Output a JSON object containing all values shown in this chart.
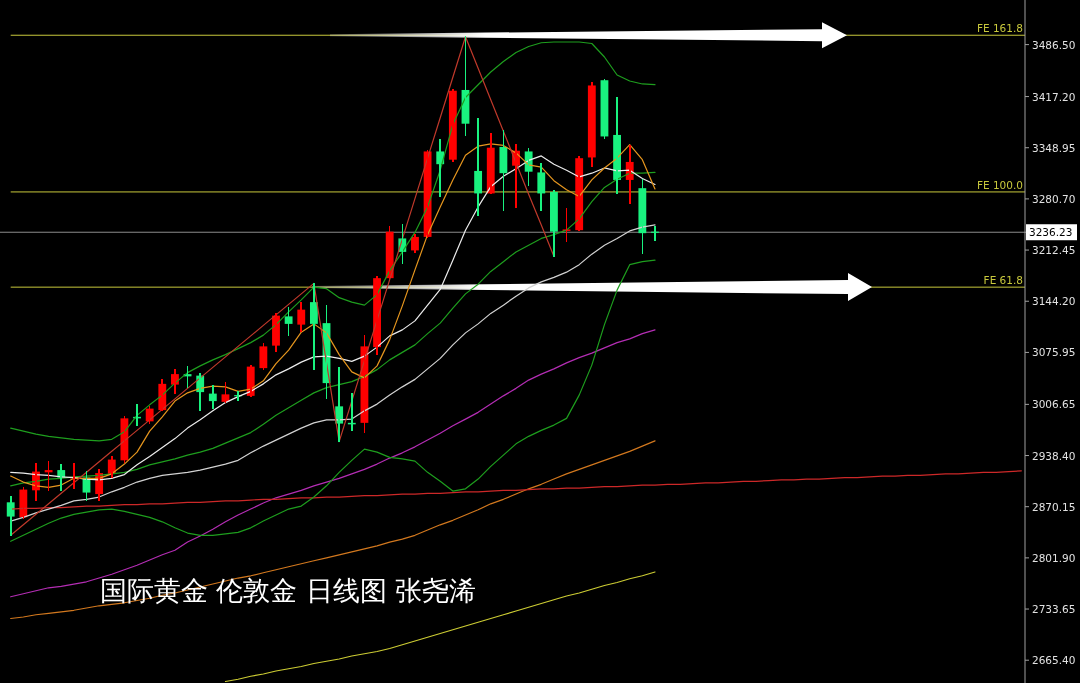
{
  "chart_data": {
    "type": "candlestick",
    "title": "国际黄金 伦敦金 日线图 张尧浠",
    "categories": [
      null,
      null,
      null,
      null,
      null,
      null,
      null,
      null,
      null,
      null,
      null,
      null,
      null,
      null,
      null,
      null,
      null,
      null,
      null,
      null,
      null,
      null,
      null,
      null,
      null,
      null,
      null,
      null,
      null,
      null,
      null,
      null,
      null,
      null,
      null,
      null,
      null,
      null,
      null,
      null,
      null,
      null,
      null,
      null,
      null,
      null,
      null,
      null,
      null,
      null,
      null,
      null,
      null,
      null,
      null,
      null,
      null,
      null,
      null,
      null,
      null,
      null,
      null,
      null,
      null,
      null,
      null,
      null,
      null,
      null,
      null,
      null,
      null,
      null,
      null,
      null,
      null,
      null,
      null,
      null,
      null
    ],
    "ohlc": [
      [
        2876,
        2883,
        2832,
        2857
      ],
      [
        2856,
        2895,
        2855,
        2893
      ],
      [
        2892,
        2928,
        2879,
        2917
      ],
      [
        2916,
        2930,
        2892,
        2919
      ],
      [
        2919,
        2926,
        2892,
        2909
      ],
      [
        2908,
        2927,
        2895,
        2910
      ],
      [
        2909,
        2917,
        2879,
        2889
      ],
      [
        2887,
        2919,
        2879,
        2915
      ],
      [
        2914,
        2937,
        2910,
        2933
      ],
      [
        2932,
        2990,
        2930,
        2988
      ],
      [
        2990,
        3006,
        2979,
        2988
      ],
      [
        2984,
        3004,
        2981,
        3001
      ],
      [
        2999,
        3039,
        2999,
        3034
      ],
      [
        3033,
        3053,
        3021,
        3047
      ],
      [
        3047,
        3057,
        3030,
        3044
      ],
      [
        3045,
        3047,
        2999,
        3023
      ],
      [
        3021,
        3032,
        3001,
        3011
      ],
      [
        3010,
        3035,
        3010,
        3020
      ],
      [
        3019,
        3024,
        3012,
        3018
      ],
      [
        3018,
        3058,
        3018,
        3057
      ],
      [
        3055,
        3087,
        3053,
        3084
      ],
      [
        3085,
        3128,
        3077,
        3125
      ],
      [
        3124,
        3136,
        3099,
        3114
      ],
      [
        3113,
        3142,
        3104,
        3133
      ],
      [
        3143,
        3167,
        3053,
        3114
      ],
      [
        3115,
        3138,
        3015,
        3035
      ],
      [
        3004,
        3055,
        2957,
        2981
      ],
      [
        2982,
        3021,
        2972,
        2980
      ],
      [
        2982,
        3098,
        2970,
        3084
      ],
      [
        3083,
        3177,
        3073,
        3175
      ],
      [
        3175,
        3244,
        3175,
        3237
      ],
      [
        3228,
        3246,
        3195,
        3210
      ],
      [
        3212,
        3233,
        3210,
        3230
      ],
      [
        3230,
        3345,
        3229,
        3344
      ],
      [
        3344,
        3359,
        3284,
        3327
      ],
      [
        3333,
        3426,
        3331,
        3425
      ],
      [
        3426,
        3497,
        3366,
        3381
      ],
      [
        3318,
        3387,
        3259,
        3288
      ],
      [
        3288,
        3368,
        3288,
        3349
      ],
      [
        3350,
        3371,
        3266,
        3315
      ],
      [
        3325,
        3353,
        3270,
        3345
      ],
      [
        3344,
        3348,
        3299,
        3317
      ],
      [
        3316,
        3328,
        3266,
        3288
      ],
      [
        3290,
        3291,
        3204,
        3237
      ],
      [
        3238,
        3268,
        3224,
        3240
      ],
      [
        3239,
        3337,
        3239,
        3335
      ],
      [
        3336,
        3435,
        3324,
        3432
      ],
      [
        3439,
        3440,
        3362,
        3364
      ],
      [
        3366,
        3415,
        3288,
        3306
      ],
      [
        3306,
        3351,
        3275,
        3330
      ],
      [
        3295,
        3306,
        3208,
        3235
      ],
      [
        3237,
        3243,
        3226,
        3236.23
      ],
      null,
      null,
      null,
      null,
      null,
      null,
      null,
      null,
      null,
      null,
      null,
      null,
      null,
      null,
      null,
      null,
      null,
      null,
      null,
      null,
      null,
      null,
      null,
      null,
      null,
      null,
      null,
      null,
      null
    ],
    "colors": [
      "#19f27f",
      "#ff0000",
      "#ff0000",
      "#ff0000",
      "#19f27f",
      "#ff0000",
      "#19f27f",
      "#ff0000",
      "#ff0000",
      "#ff0000",
      "#19f27f",
      "#ff0000",
      "#ff0000",
      "#ff0000",
      "#19f27f",
      "#19f27f",
      "#19f27f",
      "#ff0000",
      "#19f27f",
      "#ff0000",
      "#ff0000",
      "#ff0000",
      "#19f27f",
      "#ff0000",
      "#19f27f",
      "#19f27f",
      "#19f27f",
      "#19f27f",
      "#ff0000",
      "#ff0000",
      "#ff0000",
      "#19f27f",
      "#ff0000",
      "#ff0000",
      "#19f27f",
      "#ff0000",
      "#19f27f",
      "#19f27f",
      "#ff0000",
      "#19f27f",
      "#ff0000",
      "#19f27f",
      "#19f27f",
      "#19f27f",
      "#ff0000",
      "#ff0000",
      "#ff0000",
      "#19f27f",
      "#19f27f",
      "#ff0000",
      "#19f27f",
      "#19f27f",
      null,
      null,
      null,
      null,
      null,
      null,
      null,
      null,
      null,
      null,
      null,
      null,
      null,
      null,
      null,
      null,
      null,
      null,
      null,
      null,
      null,
      null,
      null,
      null,
      null,
      null,
      null,
      null,
      null
    ],
    "series": [
      {
        "type": "line",
        "color": "#cccc33",
        "values": [
          null,
          null,
          null,
          null,
          null,
          null,
          null,
          null,
          null,
          null,
          null,
          null,
          null,
          null,
          null,
          null,
          null,
          2637,
          2640,
          2644,
          2647,
          2651,
          2654,
          2657,
          2661,
          2664,
          2667,
          2671,
          2674,
          2677,
          2681,
          2686,
          2691,
          2696,
          2701,
          2706,
          2711,
          2716,
          2721,
          2726,
          2731,
          2736,
          2741,
          2746,
          2751,
          2755,
          2760,
          2765,
          2769,
          2774,
          2778,
          2783,
          null,
          null,
          null,
          null,
          null,
          null,
          null,
          null,
          null,
          null,
          null,
          null,
          null,
          null,
          null,
          null,
          null,
          null,
          null,
          null,
          null,
          null,
          null,
          null,
          null,
          null,
          null,
          null,
          null
        ]
      },
      {
        "type": "line",
        "color": "#d2781e",
        "values": [
          2721,
          2723,
          2726,
          2728,
          2730,
          2732,
          2735,
          2738,
          2740,
          2742,
          2745,
          2748,
          2752,
          2755,
          2759,
          2763,
          2767,
          2771,
          2775,
          2778,
          2782,
          2786,
          2790,
          2794,
          2798,
          2802,
          2806,
          2810,
          2814,
          2818,
          2823,
          2827,
          2832,
          2839,
          2846,
          2852,
          2859,
          2866,
          2874,
          2880,
          2887,
          2894,
          2900,
          2907,
          2914,
          2920,
          2926,
          2932,
          2938,
          2944,
          2951,
          2958,
          null,
          null,
          null,
          null,
          null,
          null,
          null,
          null,
          null,
          null,
          null,
          null,
          null,
          null,
          null,
          null,
          null,
          null,
          null,
          null,
          null,
          null,
          null,
          null,
          null,
          null,
          null,
          null,
          null
        ]
      },
      {
        "type": "line",
        "color": "#b42db4",
        "values": [
          2750,
          2754,
          2758,
          2762,
          2764,
          2767,
          2770,
          2775,
          2780,
          2786,
          2792,
          2799,
          2806,
          2812,
          2823,
          2831,
          2840,
          2850,
          2859,
          2867,
          2875,
          2882,
          2887,
          2892,
          2898,
          2903,
          2908,
          2914,
          2920,
          2927,
          2935,
          2942,
          2950,
          2959,
          2968,
          2978,
          2987,
          2996,
          3007,
          3018,
          3028,
          3039,
          3047,
          3054,
          3062,
          3069,
          3075,
          3082,
          3089,
          3094,
          3101,
          3106,
          null,
          null,
          null,
          null,
          null,
          null,
          null,
          null,
          null,
          null,
          null,
          null,
          null,
          null,
          null,
          null,
          null,
          null,
          null,
          null,
          null,
          null,
          null,
          null,
          null,
          null,
          null,
          null,
          null
        ]
      },
      {
        "type": "line",
        "color": "#cc2828",
        "values": [
          2867,
          2868,
          2868,
          2869,
          2869,
          2870,
          2871,
          2871,
          2872,
          2873,
          2873,
          2874,
          2874,
          2875,
          2876,
          2876,
          2877,
          2878,
          2878,
          2879,
          2880,
          2880,
          2881,
          2882,
          2882,
          2883,
          2883,
          2884,
          2885,
          2885,
          2886,
          2887,
          2887,
          2888,
          2888,
          2889,
          2890,
          2890,
          2891,
          2892,
          2892,
          2893,
          2894,
          2894,
          2895,
          2895,
          2896,
          2897,
          2897,
          2898,
          2899,
          2899,
          2900,
          2900,
          2901,
          2902,
          2902,
          2903,
          2904,
          2904,
          2905,
          2906,
          2906,
          2907,
          2907,
          2908,
          2909,
          2909,
          2910,
          2911,
          2911,
          2912,
          2912,
          2913,
          2914,
          2914,
          2915,
          2916,
          2916,
          2917,
          2918
        ]
      },
      {
        "type": "line",
        "color": "#1e9e1e",
        "values": [
          2975,
          2971,
          2967,
          2964,
          2962,
          2960,
          2959,
          2958,
          2960,
          2970,
          2992,
          3006,
          3019,
          3035,
          3049,
          3058,
          3066,
          3073,
          3081,
          3089,
          3099,
          3113,
          3130,
          3146,
          3163,
          3161,
          3149,
          3143,
          3139,
          3153,
          3185,
          3210,
          3236,
          3270,
          3319,
          3380,
          3416,
          3433,
          3450,
          3464,
          3476,
          3484,
          3489,
          3490,
          3490,
          3490,
          3488,
          3470,
          3446,
          3438,
          3434,
          3433,
          null,
          null,
          null,
          null,
          null,
          null,
          null,
          null,
          null,
          null,
          null,
          null,
          null,
          null,
          null,
          null,
          null,
          null,
          null,
          null,
          null,
          null,
          null,
          null,
          null,
          null,
          null,
          null,
          null
        ]
      },
      {
        "type": "line",
        "color": "#1e9e1e",
        "values": [
          2824,
          2832,
          2840,
          2848,
          2855,
          2860,
          2863,
          2866,
          2867,
          2864,
          2860,
          2856,
          2850,
          2842,
          2835,
          2832,
          2832,
          2834,
          2836,
          2842,
          2851,
          2859,
          2867,
          2871,
          2883,
          2898,
          2916,
          2932,
          2947,
          2943,
          2936,
          2934,
          2931,
          2916,
          2904,
          2891,
          2894,
          2907,
          2924,
          2939,
          2954,
          2964,
          2972,
          2979,
          2988,
          3019,
          3059,
          3113,
          3159,
          3193,
          3197,
          3199,
          null,
          null,
          null,
          null,
          null,
          null,
          null,
          null,
          null,
          null,
          null,
          null,
          null,
          null,
          null,
          null,
          null,
          null,
          null,
          null,
          null,
          null,
          null,
          null,
          null,
          null,
          null,
          null,
          null
        ]
      },
      {
        "type": "line",
        "color": "#1e9e1e",
        "values": [
          2898,
          2902,
          2904,
          2907,
          2908,
          2910,
          2911,
          2912,
          2914,
          2916,
          2920,
          2926,
          2930,
          2934,
          2939,
          2943,
          2948,
          2955,
          2962,
          2969,
          2980,
          2992,
          3002,
          3012,
          3022,
          3029,
          3033,
          3037,
          3044,
          3053,
          3066,
          3076,
          3086,
          3101,
          3115,
          3135,
          3154,
          3167,
          3184,
          3197,
          3210,
          3219,
          3228,
          3233,
          3239,
          3254,
          3277,
          3296,
          3307,
          3315,
          3315,
          3316,
          null,
          null,
          null,
          null,
          null,
          null,
          null,
          null,
          null,
          null,
          null,
          null,
          null,
          null,
          null,
          null,
          null,
          null,
          null,
          null,
          null,
          null,
          null,
          null,
          null,
          null,
          null,
          null,
          null
        ]
      },
      {
        "type": "line",
        "color": "#d2d2d2",
        "values": [
          2851,
          2856,
          2862,
          2867,
          2872,
          2878,
          2880,
          2883,
          2890,
          2896,
          2903,
          2908,
          2912,
          2914,
          2916,
          2919,
          2923,
          2927,
          2932,
          2942,
          2951,
          2959,
          2967,
          2975,
          2982,
          2986,
          2986,
          2987,
          2998,
          3007,
          3019,
          3030,
          3040,
          3054,
          3068,
          3086,
          3102,
          3114,
          3128,
          3139,
          3151,
          3162,
          3170,
          3176,
          3183,
          3193,
          3207,
          3219,
          3228,
          3238,
          3243,
          3246,
          null,
          null,
          null,
          null,
          null,
          null,
          null,
          null,
          null,
          null,
          null,
          null,
          null,
          null,
          null,
          null,
          null,
          null,
          null,
          null,
          null,
          null,
          null,
          null,
          null,
          null,
          null,
          null,
          null
        ]
      },
      {
        "type": "line",
        "color": "#ececec",
        "values": [
          2916,
          2915,
          2913,
          2912,
          2910,
          2909,
          2907,
          2906,
          2908,
          2913,
          2926,
          2937,
          2949,
          2961,
          2975,
          2986,
          2998,
          3009,
          3017,
          3024,
          3034,
          3046,
          3054,
          3063,
          3070,
          3071,
          3068,
          3064,
          3071,
          3083,
          3098,
          3106,
          3118,
          3139,
          3160,
          3199,
          3239,
          3270,
          3297,
          3311,
          3321,
          3332,
          3338,
          3327,
          3319,
          3310,
          3315,
          3322,
          3318,
          3319,
          3308,
          3300,
          null,
          null,
          null,
          null,
          null,
          null,
          null,
          null,
          null,
          null,
          null,
          null,
          null,
          null,
          null,
          null,
          null,
          null,
          null,
          null,
          null,
          null,
          null,
          null,
          null,
          null,
          null,
          null,
          null
        ]
      },
      {
        "type": "line",
        "color": "#e6961e",
        "values": [
          2911,
          2903,
          2898,
          2896,
          2899,
          2908,
          2908,
          2908,
          2914,
          2927,
          2943,
          2971,
          2990,
          3011,
          3022,
          3028,
          3031,
          3030,
          3024,
          3027,
          3038,
          3061,
          3079,
          3103,
          3114,
          3102,
          3073,
          3050,
          3042,
          3058,
          3093,
          3138,
          3186,
          3233,
          3270,
          3306,
          3339,
          3351,
          3354,
          3352,
          3342,
          3326,
          3323,
          3305,
          3293,
          3284,
          3306,
          3322,
          3335,
          3353,
          3333,
          3294,
          null,
          null,
          null,
          null,
          null,
          null,
          null,
          null,
          null,
          null,
          null,
          null,
          null,
          null,
          null,
          null,
          null,
          null,
          null,
          null,
          null,
          null,
          null,
          null,
          null,
          null,
          null,
          null,
          null
        ]
      },
      {
        "type": "line",
        "color": "#c0392b",
        "values": [
          2832,
          2846,
          2860,
          2874,
          2888,
          2902,
          2916,
          2930,
          2944,
          2958,
          2972,
          2986,
          3000,
          3014,
          3028,
          3042,
          3056,
          3070,
          3084,
          3098,
          3112,
          3126,
          3140,
          3154,
          3168,
          3062,
          2957,
          3011,
          3065,
          3119,
          3173,
          3227,
          3281,
          3335,
          3389,
          3443,
          3497,
          3455,
          3413,
          3371,
          3329,
          3287,
          3246,
          3204,
          null,
          null,
          null,
          null,
          null,
          null,
          null,
          null,
          null,
          null,
          null,
          null,
          null,
          null,
          null,
          null,
          null,
          null,
          null,
          null,
          null,
          null,
          null,
          null,
          null,
          null,
          null,
          null,
          null,
          null,
          null,
          null,
          null,
          null,
          null,
          null,
          null
        ]
      }
    ],
    "ylim": [
      2635,
      3546
    ],
    "yticks": [
      {
        "value": 3486.5,
        "label": "3486.50"
      },
      {
        "value": 3417.2,
        "label": "3417.20"
      },
      3348.95,
      {
        "value": 3280.7,
        "label": "3280.70"
      },
      3236.23,
      3212.45,
      {
        "value": 3144.2,
        "label": "3144.20"
      },
      3075.95,
      3006.65,
      {
        "value": 2938.4,
        "label": "2938.40"
      },
      2870.15,
      {
        "value": 2801.9,
        "label": "2801.90"
      },
      2733.65,
      {
        "value": 2665.4,
        "label": "2665.40"
      }
    ],
    "tick_labels": "y",
    "ref_lines": [
      {
        "axis": "y",
        "value": 3499,
        "label": "FE 161.8",
        "color": "#c8c83c"
      },
      {
        "axis": "y",
        "value": 3290,
        "label": "FE 100.0",
        "color": "#c8c83c"
      },
      {
        "axis": "y",
        "value": 3163,
        "label": "FE 61.8",
        "color": "#c8c83c"
      },
      {
        "axis": "y",
        "value": 3236.23,
        "color": "#8c8c8c"
      }
    ]
  }
}
